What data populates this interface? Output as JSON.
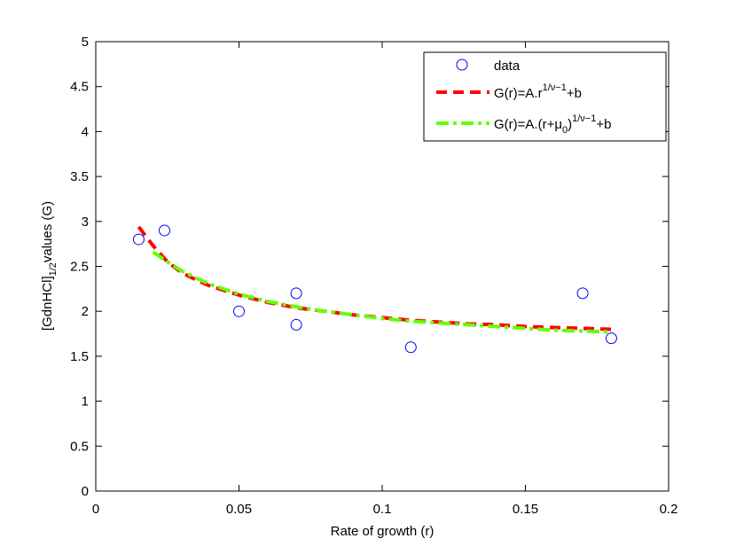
{
  "chart_data": {
    "type": "scatter",
    "title": "",
    "xlabel": "Rate of growth (r)",
    "ylabel": {
      "main": "[GdnHCl]",
      "sub": "1/2",
      "rest": "values (G)"
    },
    "xlim": [
      0,
      0.2
    ],
    "ylim": [
      0,
      5
    ],
    "xticks": [
      "0",
      "0.05",
      "0.1",
      "0.15",
      "0.2"
    ],
    "yticks": [
      "0",
      "0.5",
      "1",
      "1.5",
      "2",
      "2.5",
      "3",
      "3.5",
      "4",
      "4.5",
      "5"
    ],
    "grid": false,
    "legend_position": "top-right",
    "series": [
      {
        "name": "data",
        "kind": "markers",
        "marker": "circle",
        "color": "#0000ff",
        "x": [
          0.015,
          0.024,
          0.05,
          0.07,
          0.07,
          0.11,
          0.17,
          0.18
        ],
        "y": [
          2.8,
          2.9,
          2.0,
          2.2,
          1.85,
          1.6,
          2.2,
          1.7
        ]
      },
      {
        "name": "G(r)=A.r^(1/ν−1)+b",
        "kind": "line",
        "style": "dashed",
        "color": "#ff0000",
        "x": [
          0.015,
          0.02,
          0.025,
          0.03,
          0.035,
          0.04,
          0.05,
          0.06,
          0.07,
          0.08,
          0.09,
          0.1,
          0.11,
          0.12,
          0.13,
          0.14,
          0.15,
          0.16,
          0.17,
          0.18
        ],
        "y": [
          2.94,
          2.73,
          2.55,
          2.43,
          2.35,
          2.28,
          2.18,
          2.1,
          2.04,
          2.0,
          1.96,
          1.93,
          1.9,
          1.88,
          1.86,
          1.85,
          1.83,
          1.82,
          1.81,
          1.8
        ]
      },
      {
        "name": "G(r)=A.(r+μ0)^(1/ν−1)+b",
        "kind": "line",
        "style": "dashdot",
        "color": "#66ff00",
        "x": [
          0.02,
          0.025,
          0.03,
          0.035,
          0.04,
          0.05,
          0.06,
          0.07,
          0.08,
          0.09,
          0.1,
          0.11,
          0.12,
          0.13,
          0.14,
          0.15,
          0.16,
          0.17,
          0.18
        ],
        "y": [
          2.66,
          2.55,
          2.45,
          2.37,
          2.3,
          2.19,
          2.11,
          2.05,
          2.0,
          1.96,
          1.92,
          1.89,
          1.87,
          1.85,
          1.83,
          1.81,
          1.79,
          1.78,
          1.77
        ]
      }
    ],
    "legend": [
      {
        "label": "data"
      },
      {
        "main": "G(r)=A.r",
        "sup": "1/ν−1",
        "tail": "+b"
      },
      {
        "main": "G(r)=A.(r+μ",
        "sub": "0",
        "mid": ")",
        "sup": "1/ν−1",
        "tail": "+b"
      }
    ]
  }
}
